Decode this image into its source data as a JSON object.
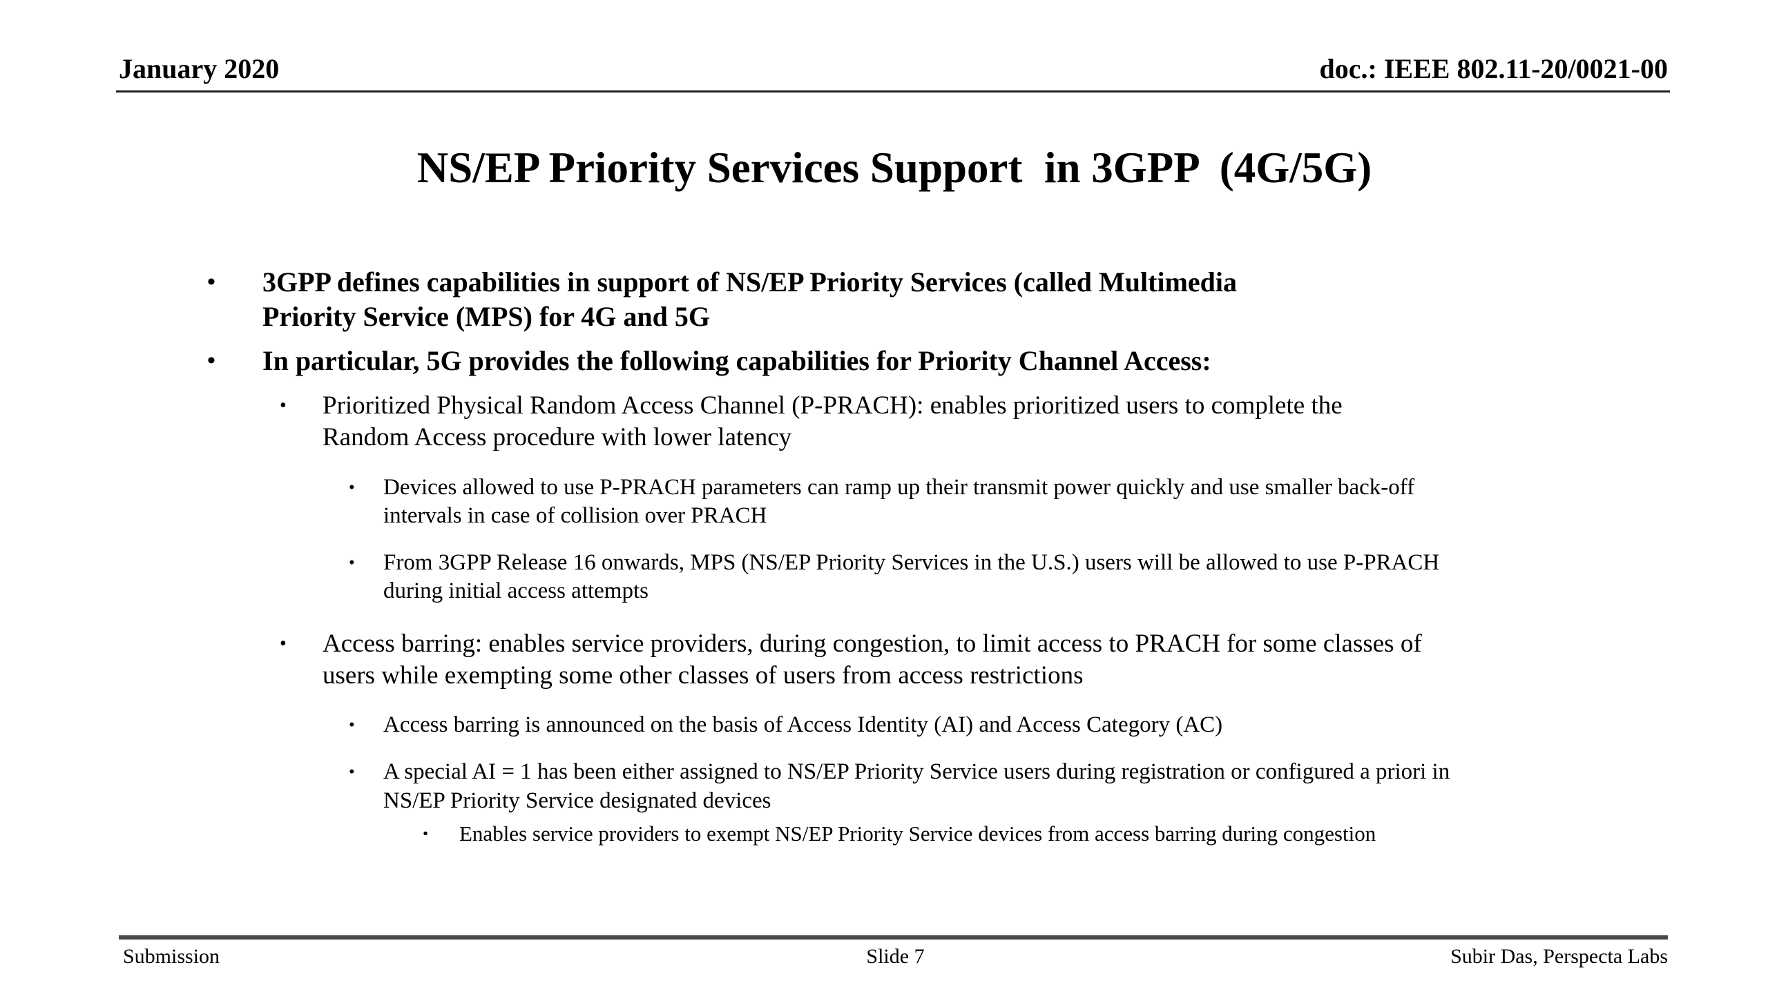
{
  "header": {
    "left": "January 2020",
    "right": "doc.: IEEE 802.11-20/0021-00"
  },
  "title": "NS/EP Priority Services Support  in 3GPP  (4G/5G)",
  "bullet_glyph": "•",
  "bullets": [
    {
      "level": 1,
      "bold": true,
      "lines": [
        "3GPP defines capabilities in support of NS/EP Priority Services (called Multimedia",
        "Priority Service (MPS) for 4G and 5G"
      ]
    },
    {
      "level": 1,
      "bold": true,
      "lines": [
        "In particular, 5G provides the following capabilities for Priority Channel Access:"
      ]
    },
    {
      "level": 2,
      "bold": false,
      "lines": [
        "Prioritized Physical Random Access Channel (P-PRACH): enables prioritized users to complete the",
        "Random Access procedure with lower latency"
      ]
    },
    {
      "level": 3,
      "bold": false,
      "lines": [
        "Devices allowed to use P-PRACH parameters can ramp up their transmit power quickly and use smaller back-off",
        "intervals in case of collision over PRACH"
      ]
    },
    {
      "level": 3,
      "bold": false,
      "lines": [
        "From 3GPP Release 16 onwards, MPS (NS/EP Priority Services in the U.S.) users will be allowed to use P-PRACH",
        "during initial access attempts"
      ]
    },
    {
      "level": 2,
      "bold": false,
      "lines": [
        "Access barring: enables service providers, during congestion, to limit access to PRACH for some classes of",
        "users while exempting some other classes of users from access restrictions"
      ]
    },
    {
      "level": 3,
      "bold": false,
      "lines": [
        "Access barring is announced on the basis of Access Identity (AI) and Access Category (AC)"
      ]
    },
    {
      "level": 3,
      "bold": false,
      "lines": [
        "A special AI = 1 has been either assigned to NS/EP Priority Service users during registration or configured a priori in",
        "NS/EP Priority Service designated devices"
      ]
    },
    {
      "level": 4,
      "bold": false,
      "lines": [
        "Enables service providers to exempt NS/EP Priority Service devices from access barring during congestion"
      ]
    }
  ],
  "footer": {
    "left": "Submission",
    "center": "Slide 7",
    "right": "Subir Das, Perspecta Labs"
  },
  "colors": {
    "background": "#ffffff",
    "text": "#000000",
    "header_rule": "#1f1f1f",
    "footer_rule": "#4a4a4a"
  }
}
